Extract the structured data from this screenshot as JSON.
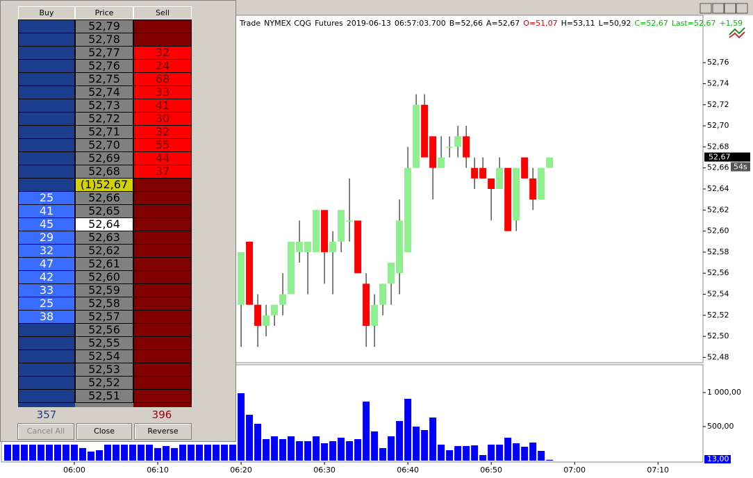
{
  "dom": {
    "headers": [
      "Buy",
      "Price",
      "Sell"
    ],
    "rows": [
      {
        "price": "52,79"
      },
      {
        "price": "52,78"
      },
      {
        "price": "52,77",
        "sell": 32
      },
      {
        "price": "52,76",
        "sell": 24
      },
      {
        "price": "52,75",
        "sell": 68
      },
      {
        "price": "52,74",
        "sell": 33
      },
      {
        "price": "52,73",
        "sell": 41
      },
      {
        "price": "52,72",
        "sell": 30
      },
      {
        "price": "52,71",
        "sell": 32
      },
      {
        "price": "52,70",
        "sell": 55
      },
      {
        "price": "52,69",
        "sell": 44
      },
      {
        "price": "52,68",
        "sell": 37
      },
      {
        "price": "(1)52,67",
        "price_bg": "#d2d200"
      },
      {
        "price": "52,66",
        "buy": 25
      },
      {
        "price": "52,65",
        "buy": 41
      },
      {
        "price": "52,64",
        "buy": 45,
        "price_bg": "#ffffff"
      },
      {
        "price": "52,63",
        "buy": 29
      },
      {
        "price": "52,62",
        "buy": 32
      },
      {
        "price": "52,61",
        "buy": 47
      },
      {
        "price": "52,60",
        "buy": 42
      },
      {
        "price": "52,59",
        "buy": 33
      },
      {
        "price": "52,58",
        "buy": 25
      },
      {
        "price": "52,57",
        "buy": 38
      },
      {
        "price": "52,56"
      },
      {
        "price": "52,55"
      },
      {
        "price": "52,54"
      },
      {
        "price": "52,53"
      },
      {
        "price": "52,52"
      },
      {
        "price": "52,51"
      }
    ],
    "totals": {
      "buy": 357,
      "sell": 396
    },
    "buttons": [
      "Cancel All",
      "Close",
      "Reverse"
    ]
  },
  "chart_data": [
    {
      "type": "candlestick",
      "info": [
        {
          "text": "Trade",
          "color": "#000000"
        },
        {
          "text": "NYMEX",
          "color": "#000000"
        },
        {
          "text": "CQG",
          "color": "#000000"
        },
        {
          "text": "Futures",
          "color": "#000000"
        },
        {
          "text": "2019-06-13",
          "color": "#000000"
        },
        {
          "text": "06:57:03.700",
          "color": "#000000"
        },
        {
          "text": "B=52,66",
          "color": "#000000"
        },
        {
          "text": "A=52,67",
          "color": "#000000"
        },
        {
          "text": "O=51,07",
          "color": "#e00000"
        },
        {
          "text": "H=53,11",
          "color": "#000000"
        },
        {
          "text": "L=50,92",
          "color": "#000000"
        },
        {
          "text": "C=52,67",
          "color": "#00c000"
        },
        {
          "text": "Last=52,67",
          "color": "#00c000"
        },
        {
          "text": "+1,59",
          "color": "#00c000"
        }
      ],
      "x": [
        380,
        381,
        382,
        383,
        384,
        385,
        386,
        387,
        388,
        389,
        390,
        391,
        392,
        393,
        394,
        395,
        396,
        397,
        398,
        399,
        400,
        401,
        402,
        403,
        404,
        405,
        406,
        407,
        408,
        409,
        410,
        411,
        412,
        413,
        414,
        415,
        416,
        417
      ],
      "open": [
        52.53,
        52.59,
        52.53,
        52.51,
        52.52,
        52.53,
        52.54,
        52.58,
        52.58,
        52.58,
        52.62,
        52.58,
        52.59,
        52.61,
        52.61,
        52.55,
        52.51,
        52.53,
        52.55,
        52.56,
        52.58,
        52.66,
        52.72,
        52.69,
        52.66,
        52.68,
        52.68,
        52.69,
        52.66,
        52.66,
        52.65,
        52.64,
        52.66,
        52.61,
        52.67,
        52.65,
        52.63,
        52.66
      ],
      "high": [
        52.58,
        52.59,
        52.54,
        52.53,
        52.53,
        52.56,
        52.59,
        52.61,
        52.59,
        52.62,
        52.62,
        52.6,
        52.62,
        52.65,
        52.61,
        52.56,
        52.54,
        52.55,
        52.57,
        52.63,
        52.68,
        52.73,
        52.73,
        52.69,
        52.69,
        52.69,
        52.7,
        52.7,
        52.67,
        52.67,
        52.65,
        52.67,
        52.66,
        52.66,
        52.67,
        52.66,
        52.66,
        52.67
      ],
      "low": [
        52.49,
        52.53,
        52.49,
        52.5,
        52.51,
        52.52,
        52.54,
        52.57,
        52.54,
        52.58,
        52.55,
        52.54,
        52.58,
        52.59,
        52.56,
        52.49,
        52.49,
        52.52,
        52.53,
        52.54,
        52.58,
        52.66,
        52.67,
        52.63,
        52.66,
        52.67,
        52.67,
        52.66,
        52.64,
        52.65,
        52.61,
        52.64,
        52.6,
        52.6,
        52.65,
        52.62,
        52.63,
        52.66
      ],
      "close": [
        52.58,
        52.53,
        52.51,
        52.52,
        52.53,
        52.54,
        52.59,
        52.59,
        52.59,
        52.62,
        52.58,
        52.59,
        52.62,
        52.61,
        52.56,
        52.51,
        52.53,
        52.55,
        52.57,
        52.61,
        52.66,
        52.72,
        52.67,
        52.66,
        52.67,
        52.68,
        52.69,
        52.67,
        52.65,
        52.65,
        52.64,
        52.66,
        52.6,
        52.66,
        52.65,
        52.63,
        52.66,
        52.67
      ],
      "up_color": "#90ee90",
      "down_color": "#ff0000",
      "ylim": [
        52.475,
        52.805
      ],
      "yticks": [
        {
          "value": 52.48,
          "label": "52,48"
        },
        {
          "value": 52.5,
          "label": "52,50"
        },
        {
          "value": 52.52,
          "label": "52,52"
        },
        {
          "value": 52.54,
          "label": "52,54"
        },
        {
          "value": 52.56,
          "label": "52,56"
        },
        {
          "value": 52.58,
          "label": "52,58"
        },
        {
          "value": 52.6,
          "label": "52,60"
        },
        {
          "value": 52.62,
          "label": "52,62"
        },
        {
          "value": 52.64,
          "label": "52,64"
        },
        {
          "value": 52.66,
          "label": "52,66"
        },
        {
          "value": 52.68,
          "label": "52,68"
        },
        {
          "value": 52.7,
          "label": "52,70"
        },
        {
          "value": 52.72,
          "label": "52,72"
        },
        {
          "value": 52.74,
          "label": "52,74"
        },
        {
          "value": 52.76,
          "label": "52,76"
        }
      ],
      "xlim": [
        351.25,
        435.4
      ],
      "last_price": 52.67,
      "last_price_label": "52,67",
      "timer": "54s"
    },
    {
      "type": "bar",
      "x": [
        352,
        353,
        354,
        355,
        356,
        357,
        358,
        359,
        360,
        361,
        362,
        363,
        364,
        365,
        366,
        367,
        368,
        369,
        370,
        371,
        372,
        373,
        374,
        375,
        376,
        377,
        378,
        379,
        380,
        381,
        382,
        383,
        384,
        385,
        386,
        387,
        388,
        389,
        390,
        391,
        392,
        393,
        394,
        395,
        396,
        397,
        398,
        399,
        400,
        401,
        402,
        403,
        404,
        405,
        406,
        407,
        408,
        409,
        410,
        411,
        412,
        413,
        414,
        415,
        416,
        417
      ],
      "values": [
        235,
        235,
        235,
        235,
        235,
        235,
        235,
        235,
        235,
        185,
        133,
        153,
        235,
        235,
        235,
        235,
        235,
        235,
        185,
        214,
        185,
        235,
        235,
        235,
        235,
        235,
        235,
        235,
        990,
        673,
        541,
        316,
        357,
        316,
        357,
        286,
        286,
        357,
        255,
        286,
        337,
        286,
        316,
        867,
        429,
        184,
        357,
        582,
        908,
        500,
        449,
        633,
        235,
        153,
        214,
        214,
        224,
        82,
        235,
        235,
        337,
        255,
        204,
        265,
        143,
        13
      ],
      "color": "#0000ff",
      "ylim": [
        0,
        1408
      ],
      "yticks": [
        {
          "value": 500,
          "label": "500,00"
        },
        {
          "value": 1000,
          "label": "1 000,00"
        }
      ],
      "last_value_label": "13,00",
      "xlim": [
        351.25,
        435.4
      ],
      "xticks": [
        {
          "value": 360,
          "label": "06:00"
        },
        {
          "value": 370,
          "label": "06:10"
        },
        {
          "value": 380,
          "label": "06:20"
        },
        {
          "value": 390,
          "label": "06:30"
        },
        {
          "value": 400,
          "label": "06:40"
        },
        {
          "value": 410,
          "label": "06:50"
        },
        {
          "value": 420,
          "label": "07:00"
        },
        {
          "value": 430,
          "label": "07:10"
        }
      ]
    }
  ]
}
